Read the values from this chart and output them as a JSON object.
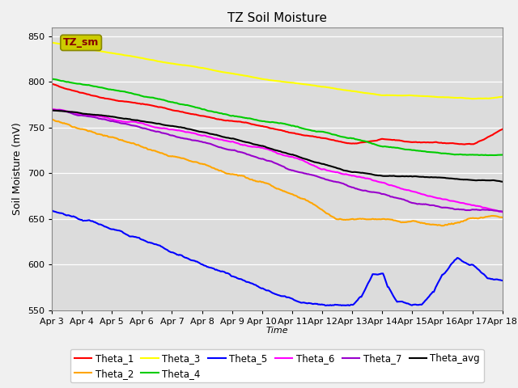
{
  "title": "TZ Soil Moisture",
  "xlabel": "Time",
  "ylabel": "Soil Moisture (mV)",
  "ylim": [
    550,
    860
  ],
  "yticks": [
    550,
    600,
    650,
    700,
    750,
    800,
    850
  ],
  "x_labels": [
    "Apr 3",
    "Apr 4",
    "Apr 5",
    "Apr 6",
    "Apr 7",
    "Apr 8",
    "Apr 9",
    "Apr 10",
    "Apr 11",
    "Apr 12",
    "Apr 13",
    "Apr 14",
    "Apr 15",
    "Apr 16",
    "Apr 17",
    "Apr 18"
  ],
  "legend_entries": [
    "Theta_1",
    "Theta_2",
    "Theta_3",
    "Theta_4",
    "Theta_5",
    "Theta_6",
    "Theta_7",
    "Theta_avg"
  ],
  "line_colors": [
    "#ff0000",
    "#ffa500",
    "#ffff00",
    "#00cc00",
    "#0000ff",
    "#ff00ff",
    "#9900cc",
    "#000000"
  ],
  "bg_color": "#dcdcdc",
  "fig_color": "#f0f0f0",
  "lw": 1.5
}
